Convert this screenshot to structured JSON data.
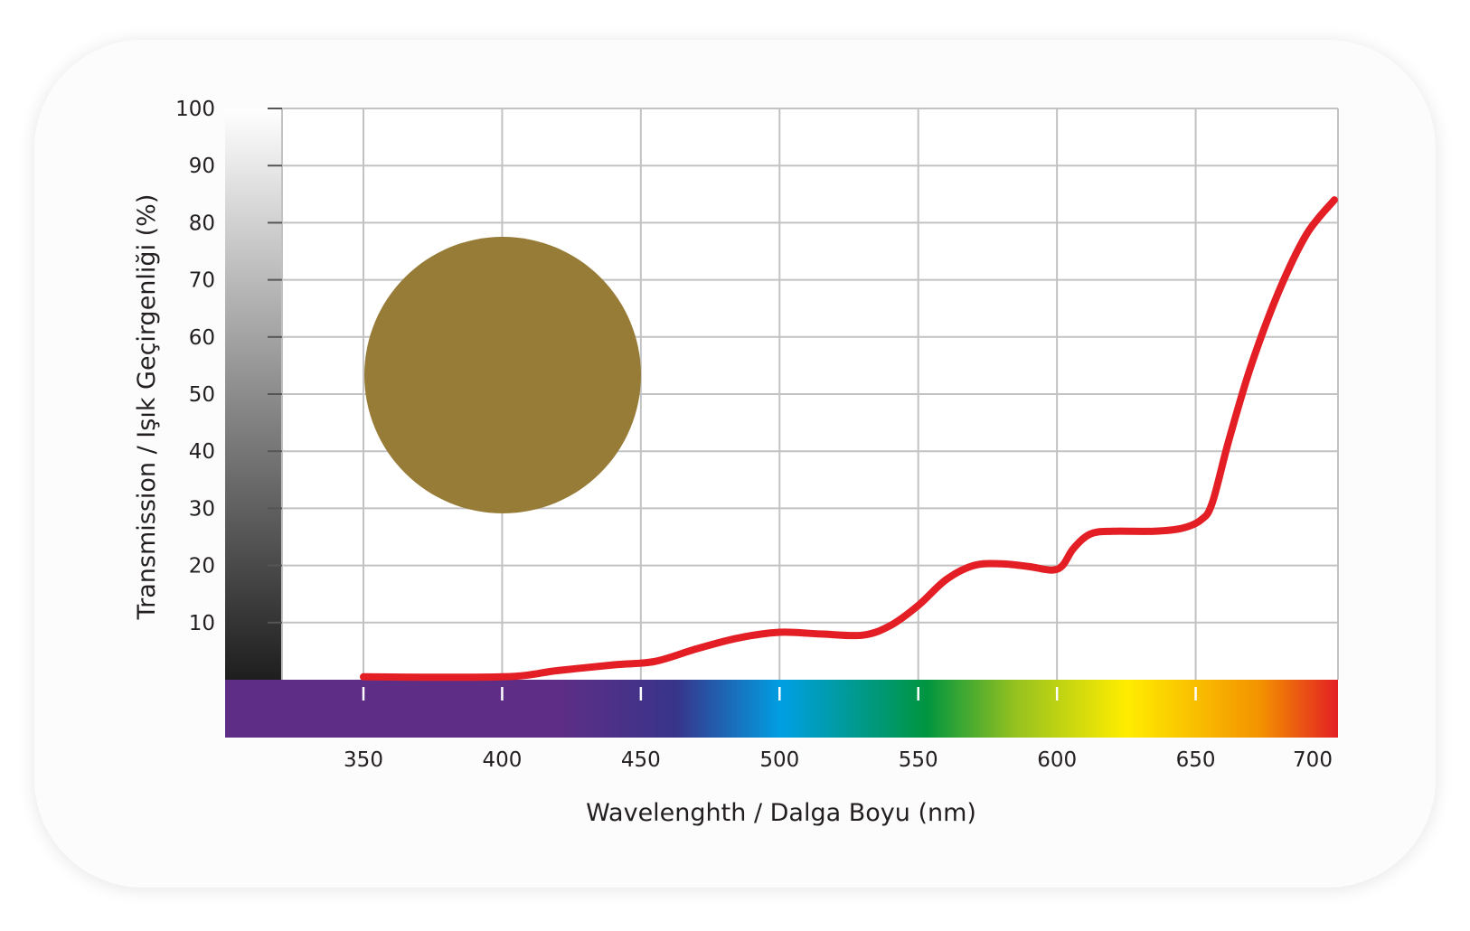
{
  "chart_data": {
    "type": "line",
    "title": "",
    "xlabel": "Wavelenghth / Dalga Boyu (nm)",
    "ylabel": "Transmission / Işık Geçirgenliği (%)",
    "xlim": [
      320,
      705
    ],
    "ylim": [
      0,
      100
    ],
    "x_ticks": [
      "350",
      "400",
      "450",
      "500",
      "550",
      "600",
      "650",
      "700"
    ],
    "y_ticks": [
      "10",
      "20",
      "30",
      "40",
      "50",
      "60",
      "70",
      "80",
      "90",
      "100"
    ],
    "grid": true,
    "series": [
      {
        "color": "#e31e24",
        "x": [
          350,
          400,
          420,
          440,
          455,
          470,
          485,
          500,
          515,
          530,
          540,
          550,
          560,
          570,
          580,
          590,
          598,
          602,
          606,
          612,
          620,
          635,
          645,
          652,
          656,
          662,
          670,
          680,
          690,
          700
        ],
        "y": [
          0.5,
          0.5,
          1.6,
          2.6,
          3.2,
          5.4,
          7.3,
          8.3,
          8.0,
          7.8,
          9.5,
          13.0,
          17.5,
          20.0,
          20.3,
          19.8,
          19.2,
          20.0,
          23.0,
          25.5,
          26.0,
          26.0,
          26.5,
          28.0,
          31.0,
          42.0,
          55.0,
          68.0,
          78.0,
          84.0
        ]
      }
    ],
    "swatch_color": "#977c37",
    "spectrum_colors": [
      "#5e2e86",
      "#38348a",
      "#009fe3",
      "#009540",
      "#95c11f",
      "#ffed00",
      "#f39200",
      "#e31e24"
    ]
  }
}
